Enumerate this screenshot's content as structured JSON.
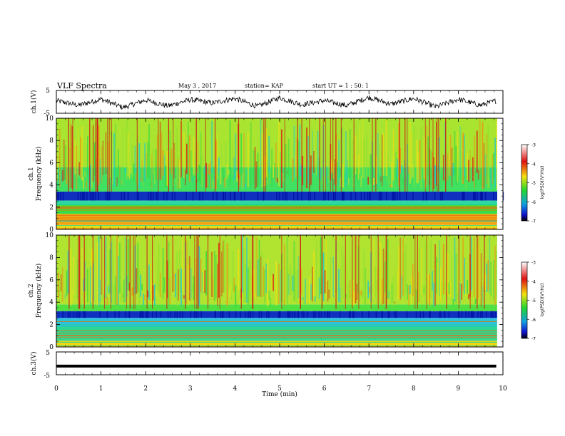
{
  "header": {
    "title": "VLF Spectra",
    "date": "May 3 , 2017",
    "station": "station= KAP",
    "start": "start  UT =   1 : 50: 1"
  },
  "chart_data": [
    {
      "type": "line",
      "panel": "ch1-waveform",
      "ylabel": "ch.1(V)",
      "ylim": [
        -5,
        5
      ],
      "yticks": [
        "5",
        "-5"
      ],
      "xlim": [
        0,
        10
      ],
      "x": [
        0,
        0.5,
        1,
        1.5,
        2,
        2.5,
        3,
        3.5,
        4,
        4.5,
        5,
        5.5,
        6,
        6.5,
        7,
        7.5,
        8,
        8.5,
        9,
        9.5,
        9.85
      ],
      "y": [
        0.5,
        -1.5,
        1.2,
        -2.5,
        0.8,
        -1.8,
        1.0,
        -0.5,
        1.5,
        -2.0,
        1.8,
        -1.2,
        0.6,
        -1.6,
        2.0,
        -1.0,
        1.5,
        -2.2,
        1.2,
        -1.5,
        0.5
      ]
    },
    {
      "type": "heatmap",
      "panel": "ch1-spectrogram",
      "ylabel_top": "ch.1",
      "ylabel": "Frequency (kHz)",
      "ylim": [
        0,
        10
      ],
      "yticks": [
        "0",
        "2",
        "4",
        "6",
        "8",
        "10"
      ],
      "xlim": [
        0,
        10
      ],
      "bands": [
        {
          "from": 0,
          "to": 0.4,
          "color": "#f0e010"
        },
        {
          "from": 0.4,
          "to": 1.4,
          "color": "#f2a414"
        },
        {
          "from": 1.4,
          "to": 2.2,
          "color": "#40e030"
        },
        {
          "from": 2.2,
          "to": 2.6,
          "color": "#30d8a0"
        },
        {
          "from": 2.6,
          "to": 3.4,
          "color": "#1030c0"
        },
        {
          "from": 3.4,
          "to": 5.6,
          "color": "#40e060"
        },
        {
          "from": 5.6,
          "to": 10,
          "color": "#a8e430"
        }
      ],
      "colorbar": {
        "label": "log(PSD)(V²/Hz)",
        "ticks": [
          "-3",
          "-4",
          "-5",
          "-6",
          "-7"
        ],
        "range": [
          -7,
          -3
        ]
      }
    },
    {
      "type": "heatmap",
      "panel": "ch2-spectrogram",
      "ylabel_top": "ch.2",
      "ylabel": "Frequency (kHz)",
      "ylim": [
        0,
        10
      ],
      "yticks": [
        "0",
        "2",
        "4",
        "6",
        "8",
        "10"
      ],
      "xlim": [
        0,
        10
      ],
      "bands": [
        {
          "from": 0,
          "to": 0.6,
          "color": "#f0d810"
        },
        {
          "from": 0.6,
          "to": 1.8,
          "color": "#30d890"
        },
        {
          "from": 1.8,
          "to": 2.6,
          "color": "#30c0e0"
        },
        {
          "from": 2.6,
          "to": 3.2,
          "color": "#1030c0"
        },
        {
          "from": 3.2,
          "to": 3.8,
          "color": "#50e040"
        },
        {
          "from": 3.8,
          "to": 10,
          "color": "#b0e430"
        }
      ],
      "colorbar": {
        "label": "log(PSD)(V²/Hz)",
        "ticks": [
          "-3",
          "-4",
          "-5",
          "-6",
          "-7"
        ],
        "range": [
          -7,
          -3
        ]
      }
    },
    {
      "type": "line",
      "panel": "ch3-waveform",
      "ylabel": "ch.3(V)",
      "ylim": [
        -5,
        5
      ],
      "yticks": [
        "5",
        "-5"
      ],
      "xlim": [
        0,
        10
      ],
      "x": [
        0,
        9.85
      ],
      "y": [
        -1.2,
        -1.2
      ],
      "xlabel": "Time (min)",
      "xticks": [
        "0",
        "1",
        "2",
        "3",
        "4",
        "5",
        "6",
        "7",
        "8",
        "9",
        "10"
      ]
    }
  ]
}
